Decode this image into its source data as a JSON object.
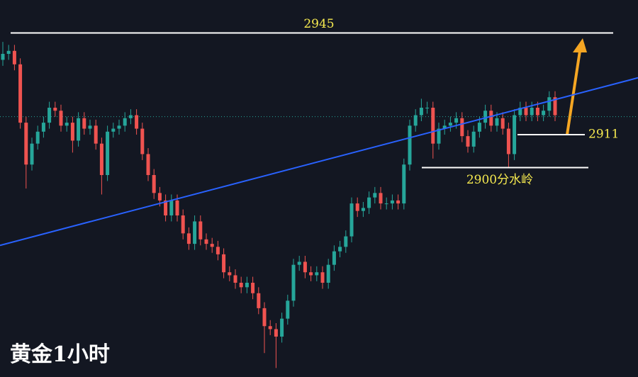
{
  "chart_data": {
    "type": "candlestick",
    "title": "黄金1小时",
    "ylim": [
      2830,
      2956
    ],
    "up_color": "#26a69a",
    "down_color": "#ef5350",
    "open": [
      2936,
      2938,
      2939,
      2934.5,
      2915,
      2901,
      2908,
      2912,
      2915,
      2920,
      2919,
      2914,
      2915,
      2909,
      2916.5,
      2913,
      2914,
      2908,
      2897.5,
      2912,
      2913,
      2914,
      2916.5,
      2917.5,
      2913,
      2904.5,
      2897.5,
      2891.5,
      2889,
      2884,
      2889,
      2884,
      2878,
      2874.5,
      2882,
      2876,
      2874.5,
      2873.5,
      2871,
      2865,
      2864,
      2861.5,
      2860,
      2861.5,
      2858,
      2853,
      2847,
      2846,
      2843.5,
      2849.5,
      2855.5,
      2867.5,
      2868.5,
      2865,
      2864,
      2865,
      2861.5,
      2867.5,
      2872,
      2873.5,
      2877,
      2888,
      2885.5,
      2886.5,
      2890,
      2891.5,
      2888,
      2888,
      2889,
      2888,
      2901,
      2914,
      2917.5,
      2920,
      2920,
      2908,
      2913,
      2914,
      2915,
      2916.5,
      2910.5,
      2907,
      2912,
      2915,
      2919,
      2914,
      2916.5,
      2913,
      2904.5,
      2917.5,
      2920,
      2917.5,
      2920,
      2917.5,
      2919,
      2923.5
    ],
    "high": [
      2942,
      2941,
      2941,
      2936.5,
      2917,
      2910,
      2914,
      2917,
      2922,
      2922,
      2921,
      2917,
      2917,
      2918.5,
      2918.5,
      2916,
      2916,
      2910,
      2914,
      2915,
      2916,
      2918.5,
      2919.5,
      2919.5,
      2915,
      2906.5,
      2899.5,
      2893.5,
      2891,
      2891,
      2891,
      2886,
      2880,
      2884,
      2884,
      2878,
      2876.5,
      2875.5,
      2873,
      2867,
      2866,
      2863.5,
      2863.5,
      2863.5,
      2860,
      2855,
      2849,
      2848,
      2851.5,
      2857.5,
      2869.5,
      2870.5,
      2870.5,
      2867,
      2867,
      2867,
      2869.5,
      2874,
      2875.5,
      2879,
      2890,
      2890,
      2888.5,
      2892,
      2893.5,
      2893.5,
      2890,
      2891,
      2891,
      2903,
      2916,
      2919.5,
      2923,
      2922,
      2922,
      2915,
      2916,
      2917,
      2918.5,
      2918.5,
      2912.5,
      2914,
      2917,
      2921,
      2921,
      2918.5,
      2918.5,
      2915,
      2919.5,
      2922,
      2922,
      2922,
      2922,
      2921,
      2925.5,
      2925.5
    ],
    "low": [
      2934,
      2936,
      2932.5,
      2913,
      2893,
      2899,
      2906,
      2910,
      2913,
      2917,
      2912,
      2912,
      2905,
      2907,
      2911,
      2911,
      2906,
      2891,
      2895.5,
      2910,
      2911,
      2912,
      2914.5,
      2911,
      2902.5,
      2895.5,
      2889.5,
      2887,
      2882,
      2882,
      2882,
      2876,
      2872.5,
      2872.5,
      2874,
      2872.5,
      2871.5,
      2869,
      2863,
      2862,
      2859.5,
      2858,
      2858,
      2856,
      2851,
      2838,
      2844,
      2833,
      2841.5,
      2847.5,
      2853.5,
      2865.5,
      2863,
      2862,
      2862,
      2859.5,
      2859.5,
      2865.5,
      2870,
      2871.5,
      2875,
      2883.5,
      2883.5,
      2884.5,
      2888,
      2886,
      2886,
      2886,
      2886,
      2886,
      2899,
      2912,
      2915.5,
      2918,
      2903,
      2906,
      2911,
      2912,
      2913,
      2908.5,
      2905,
      2905,
      2910,
      2913,
      2912,
      2912,
      2911,
      2900,
      2902.5,
      2915.5,
      2915.5,
      2915.5,
      2915.5,
      2915.5,
      2917,
      2915.5
    ],
    "close": [
      2938,
      2939,
      2934.5,
      2915,
      2901,
      2908,
      2912,
      2915,
      2920,
      2919,
      2914,
      2915,
      2909,
      2916.5,
      2913,
      2914,
      2908,
      2897.5,
      2912,
      2913,
      2914,
      2916.5,
      2917.5,
      2913,
      2904.5,
      2897.5,
      2891.5,
      2889,
      2884,
      2889,
      2884,
      2878,
      2874.5,
      2882,
      2876,
      2874.5,
      2873.5,
      2871,
      2865,
      2864,
      2861.5,
      2860,
      2861.5,
      2858,
      2853,
      2847,
      2846,
      2843.5,
      2849.5,
      2855.5,
      2867.5,
      2868.5,
      2865,
      2864,
      2865,
      2861.5,
      2867.5,
      2872,
      2873.5,
      2877,
      2888,
      2885.5,
      2886.5,
      2890,
      2891.5,
      2888,
      2888,
      2889,
      2888,
      2901,
      2914,
      2917.5,
      2920,
      2920,
      2908,
      2913,
      2914,
      2915,
      2916.5,
      2910.5,
      2907,
      2912,
      2915,
      2919,
      2914,
      2916.5,
      2913,
      2904.5,
      2917.5,
      2920,
      2917.5,
      2920,
      2917.5,
      2919,
      2923.5,
      2917.5
    ],
    "price_line": 2917,
    "trendline": [
      2874,
      2930
    ],
    "levels": [
      {
        "value": 2945,
        "label": "2945"
      },
      {
        "value": 2911,
        "label": "2911"
      },
      {
        "value": 2900,
        "label": "2900分水岭"
      }
    ]
  }
}
